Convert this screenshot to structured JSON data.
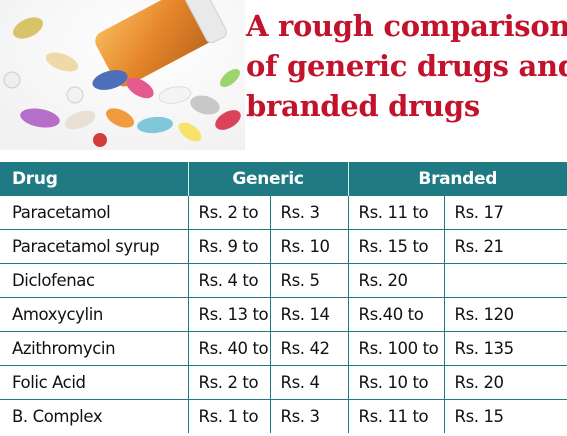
{
  "headline": {
    "line1": "A rough comparison",
    "line2": "of generic drugs and",
    "line3": "branded drugs"
  },
  "table": {
    "columns": [
      "Drug",
      "Generic",
      "Branded"
    ],
    "rows": [
      {
        "drug": "Paracetamol",
        "g_from": "Rs. 2 to",
        "g_to": "Rs. 3",
        "b_from": "Rs. 11 to",
        "b_to": "Rs. 17"
      },
      {
        "drug": "Paracetamol syrup",
        "g_from": "Rs. 9 to",
        "g_to": "Rs. 10",
        "b_from": "Rs. 15 to",
        "b_to": "Rs. 21"
      },
      {
        "drug": "Diclofenac",
        "g_from": "Rs. 4 to",
        "g_to": "Rs. 5",
        "b_from": "Rs. 20",
        "b_to": ""
      },
      {
        "drug": "Amoxycylin",
        "g_from": "Rs. 13 to",
        "g_to": "Rs. 14",
        "b_from": "Rs.40 to",
        "b_to": "Rs. 120"
      },
      {
        "drug": "Azithromycin",
        "g_from": "Rs. 40 to",
        "g_to": "Rs. 42",
        "b_from": "Rs. 100 to",
        "b_to": "Rs. 135"
      },
      {
        "drug": "Folic Acid",
        "g_from": "Rs. 2 to",
        "g_to": "Rs. 4",
        "b_from": "Rs. 10 to",
        "b_to": "Rs. 20"
      },
      {
        "drug": "B. Complex",
        "g_from": "Rs. 1 to",
        "g_to": "Rs. 3",
        "b_from": "Rs. 11 to",
        "b_to": "Rs. 15"
      }
    ]
  },
  "colors": {
    "header_bg": "#1f7a84",
    "headline": "#c3122b"
  }
}
